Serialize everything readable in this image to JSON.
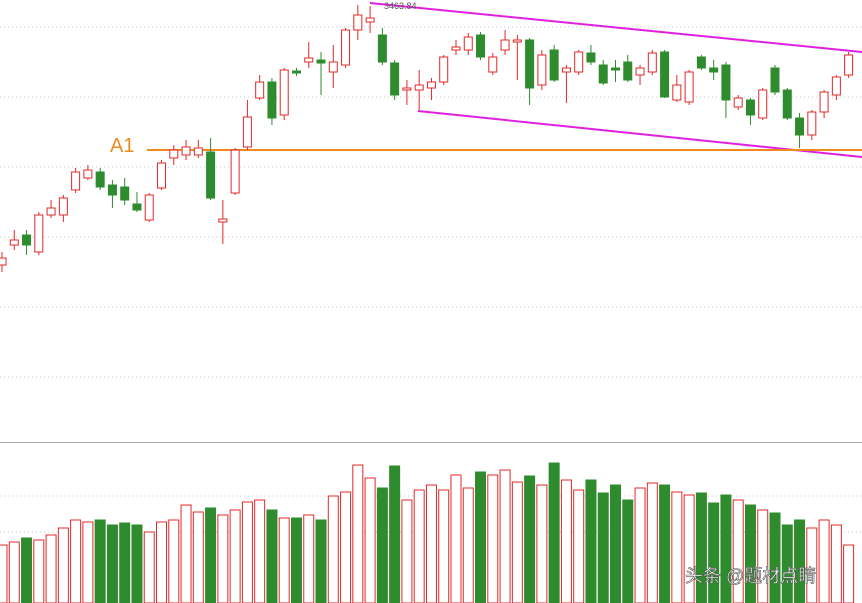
{
  "chart_data": {
    "type": "candlestick",
    "candles": {
      "open": [
        3205,
        3225,
        3235,
        3218,
        3255,
        3255,
        3280,
        3292,
        3298,
        3285,
        3283,
        3266,
        3250,
        3282,
        3312,
        3315,
        3315,
        3318,
        3248,
        3277,
        3323,
        3372,
        3388,
        3355,
        3399,
        3408,
        3410,
        3398,
        3405,
        3440,
        3448,
        3435,
        3407,
        3380,
        3380,
        3382,
        3388,
        3420,
        3420,
        3435,
        3398,
        3420,
        3428,
        3430,
        3385,
        3420,
        3398,
        3398,
        3417,
        3405,
        3402,
        3408,
        3395,
        3398,
        3418,
        3370,
        3368,
        3413,
        3402,
        3405,
        3363,
        3370,
        3352,
        3402,
        3380,
        3352,
        3335,
        3358,
        3375,
        3395
      ],
      "high": [
        3218,
        3240,
        3240,
        3258,
        3270,
        3275,
        3302,
        3305,
        3302,
        3290,
        3292,
        3278,
        3277,
        3310,
        3325,
        3330,
        3330,
        3332,
        3270,
        3322,
        3370,
        3395,
        3392,
        3402,
        3402,
        3428,
        3418,
        3425,
        3442,
        3465,
        3463.84,
        3442,
        3410,
        3390,
        3400,
        3392,
        3415,
        3430,
        3437,
        3438,
        3417,
        3440,
        3435,
        3432,
        3420,
        3425,
        3405,
        3420,
        3425,
        3410,
        3410,
        3415,
        3405,
        3420,
        3420,
        3395,
        3400,
        3415,
        3410,
        3408,
        3375,
        3372,
        3382,
        3405,
        3382,
        3357,
        3360,
        3380,
        3395,
        3418
      ],
      "low": [
        3198,
        3220,
        3215,
        3215,
        3252,
        3248,
        3277,
        3290,
        3280,
        3262,
        3265,
        3258,
        3248,
        3280,
        3305,
        3310,
        3312,
        3270,
        3226,
        3275,
        3320,
        3370,
        3345,
        3350,
        3394,
        3402,
        3375,
        3382,
        3402,
        3430,
        3437,
        3405,
        3370,
        3365,
        3360,
        3370,
        3385,
        3415,
        3415,
        3410,
        3395,
        3415,
        3390,
        3365,
        3380,
        3388,
        3367,
        3395,
        3405,
        3385,
        3388,
        3388,
        3385,
        3395,
        3372,
        3368,
        3365,
        3400,
        3390,
        3352,
        3360,
        3345,
        3350,
        3375,
        3350,
        3322,
        3330,
        3352,
        3370,
        3392
      ],
      "close": [
        3212,
        3230,
        3225,
        3255,
        3262,
        3272,
        3298,
        3300,
        3283,
        3275,
        3270,
        3260,
        3275,
        3307,
        3320,
        3323,
        3322,
        3272,
        3251,
        3320,
        3353,
        3388,
        3352,
        3400,
        3397,
        3412,
        3407,
        3408,
        3440,
        3455,
        3452,
        3408,
        3375,
        3382,
        3385,
        3388,
        3413,
        3423,
        3433,
        3413,
        3413,
        3430,
        3430,
        3382,
        3415,
        3390,
        3402,
        3418,
        3408,
        3387,
        3400,
        3390,
        3402,
        3417,
        3373,
        3385,
        3398,
        3402,
        3398,
        3370,
        3372,
        3355,
        3380,
        3378,
        3352,
        3335,
        3358,
        3378,
        3393,
        3415
      ]
    },
    "volume": [
      58,
      61,
      65,
      63,
      68,
      75,
      83,
      81,
      83,
      78,
      80,
      78,
      71,
      81,
      83,
      98,
      91,
      95,
      88,
      93,
      101,
      103,
      93,
      85,
      85,
      88,
      83,
      107,
      111,
      138,
      125,
      115,
      137,
      103,
      113,
      118,
      113,
      128,
      115,
      131,
      128,
      133,
      121,
      127,
      118,
      140,
      123,
      113,
      123,
      110,
      118,
      103,
      115,
      120,
      118,
      111,
      108,
      110,
      100,
      108,
      103,
      98,
      93,
      90,
      78,
      83,
      75,
      83,
      78,
      58
    ],
    "ylim": [
      3029,
      3470
    ],
    "volume_ylim": [
      0,
      158
    ],
    "up_color": "#e02828",
    "down_color": "#2e8b2e",
    "level": {
      "label": "A1",
      "value": 3320,
      "color": "#f08a1e"
    },
    "watermark": "头条 @题材点睛"
  }
}
